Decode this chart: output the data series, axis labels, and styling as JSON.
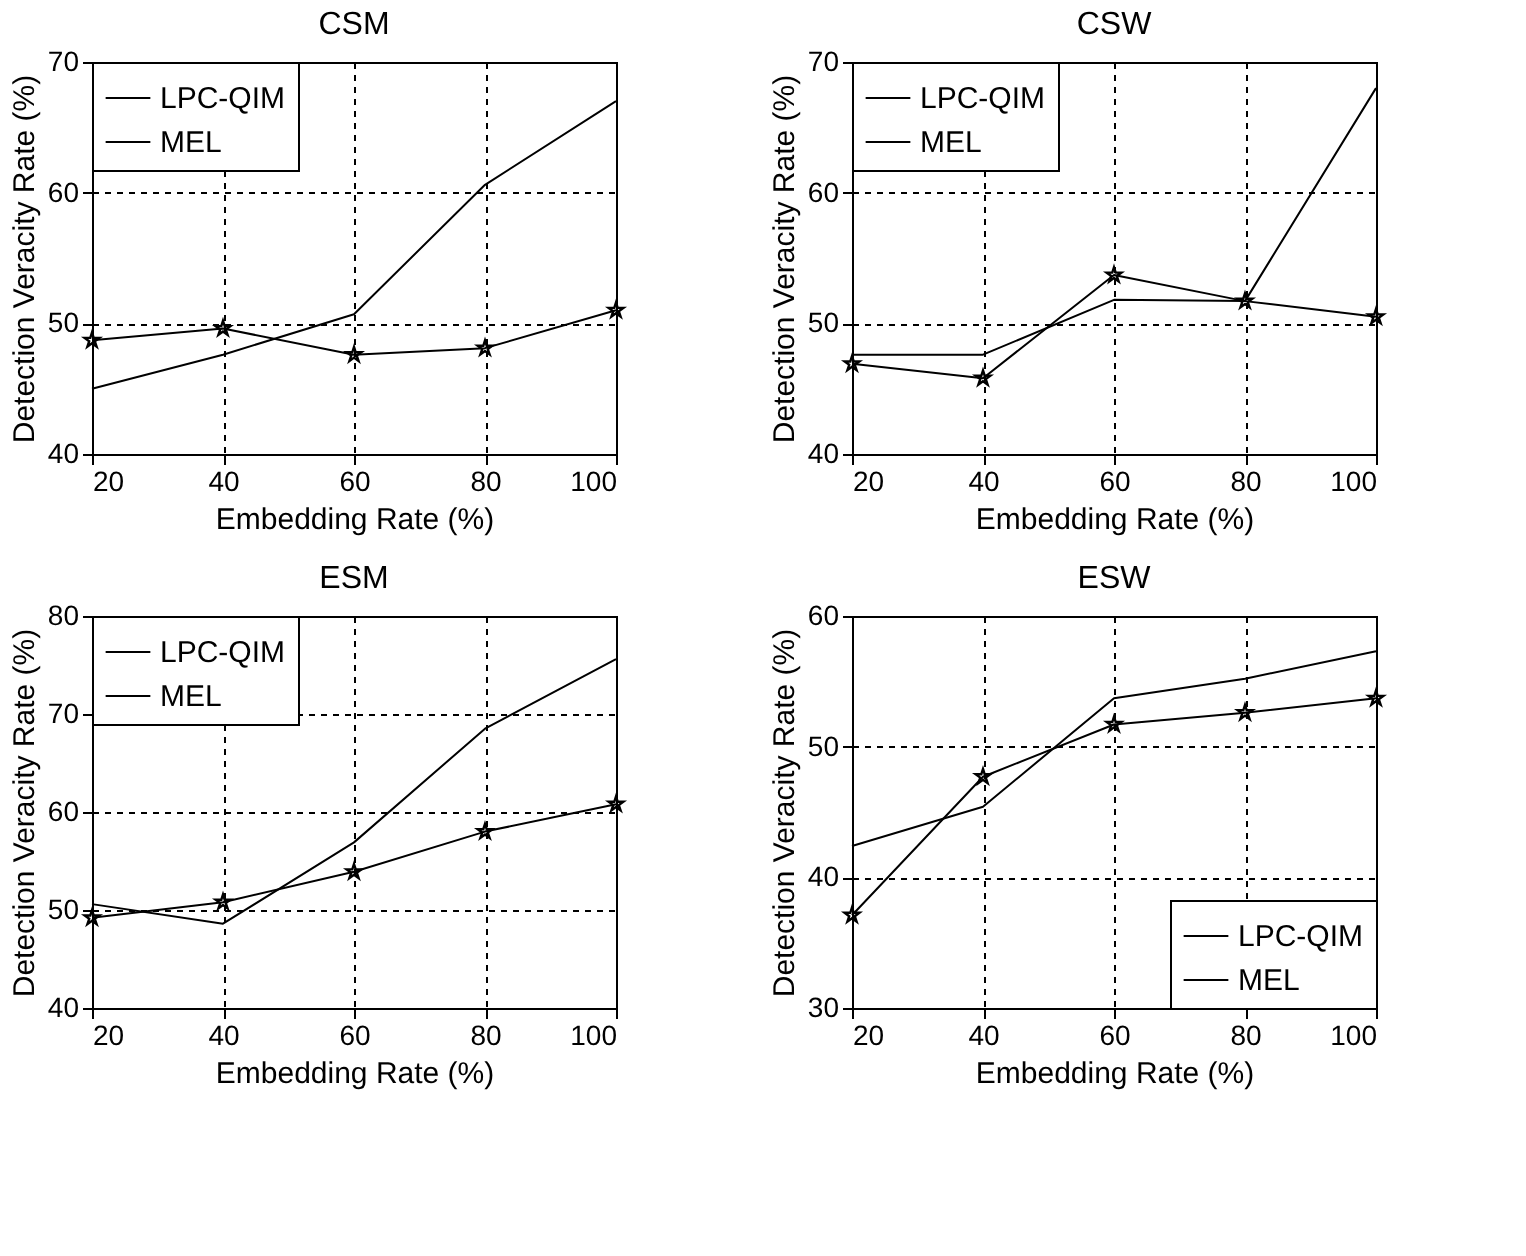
{
  "chart_data": [
    {
      "type": "line",
      "title": "CSM",
      "xlabel": "Embedding Rate (%)",
      "ylabel": "Detection Veracity Rate (%)",
      "x": [
        20,
        40,
        60,
        80,
        100
      ],
      "xlim": [
        20,
        100
      ],
      "xticks": [
        20,
        40,
        60,
        80,
        100
      ],
      "ylim": [
        40,
        70
      ],
      "yticks": [
        40,
        50,
        60,
        70
      ],
      "grid": true,
      "legend": "top left",
      "line_style": "solid",
      "series": [
        {
          "name": "LPC-QIM",
          "color": "#000000",
          "marker": "none",
          "values": [
            45.0,
            47.6,
            50.7,
            60.6,
            67.0
          ]
        },
        {
          "name": "MEL",
          "color": "#000000",
          "marker": "star",
          "values": [
            48.7,
            49.6,
            47.6,
            48.1,
            51.0
          ]
        }
      ]
    },
    {
      "type": "line",
      "title": "CSW",
      "xlabel": "Embedding Rate (%)",
      "ylabel": "Detection Veracity Rate (%)",
      "x": [
        20,
        40,
        60,
        80,
        100
      ],
      "xlim": [
        20,
        100
      ],
      "xticks": [
        20,
        40,
        60,
        80,
        100
      ],
      "ylim": [
        40,
        70
      ],
      "yticks": [
        40,
        50,
        60,
        70
      ],
      "grid": true,
      "legend": "top left",
      "line_style": "solid",
      "series": [
        {
          "name": "LPC-QIM",
          "color": "#000000",
          "marker": "none",
          "values": [
            47.6,
            47.6,
            51.8,
            51.7,
            68.0
          ]
        },
        {
          "name": "MEL",
          "color": "#000000",
          "marker": "star",
          "values": [
            46.9,
            45.8,
            53.7,
            51.7,
            50.5
          ]
        }
      ]
    },
    {
      "type": "line",
      "title": "ESM",
      "xlabel": "Embedding Rate (%)",
      "ylabel": "Detection Veracity Rate (%)",
      "x": [
        20,
        40,
        60,
        80,
        100
      ],
      "xlim": [
        20,
        100
      ],
      "xticks": [
        20,
        40,
        60,
        80,
        100
      ],
      "ylim": [
        40,
        80
      ],
      "yticks": [
        40,
        50,
        60,
        70,
        80
      ],
      "grid": true,
      "legend": "top left",
      "line_style": "solid",
      "series": [
        {
          "name": "LPC-QIM",
          "color": "#000000",
          "marker": "none",
          "values": [
            50.6,
            48.6,
            56.9,
            68.5,
            75.6
          ]
        },
        {
          "name": "MEL",
          "color": "#000000",
          "marker": "star",
          "values": [
            49.2,
            50.8,
            53.9,
            58.0,
            60.8
          ]
        }
      ]
    },
    {
      "type": "line",
      "title": "ESW",
      "xlabel": "Embedding Rate (%)",
      "ylabel": "Detection Veracity Rate (%)",
      "x": [
        20,
        40,
        60,
        80,
        100
      ],
      "xlim": [
        20,
        100
      ],
      "xticks": [
        20,
        40,
        60,
        80,
        100
      ],
      "ylim": [
        30,
        60
      ],
      "yticks": [
        30,
        40,
        50,
        60
      ],
      "grid": true,
      "legend": "bottom right",
      "line_style": "solid",
      "series": [
        {
          "name": "LPC-QIM",
          "color": "#000000",
          "marker": "none",
          "values": [
            42.4,
            45.4,
            53.7,
            55.2,
            57.3
          ]
        },
        {
          "name": "MEL",
          "color": "#000000",
          "marker": "star",
          "values": [
            37.1,
            47.7,
            51.7,
            52.6,
            53.7
          ]
        }
      ]
    }
  ]
}
